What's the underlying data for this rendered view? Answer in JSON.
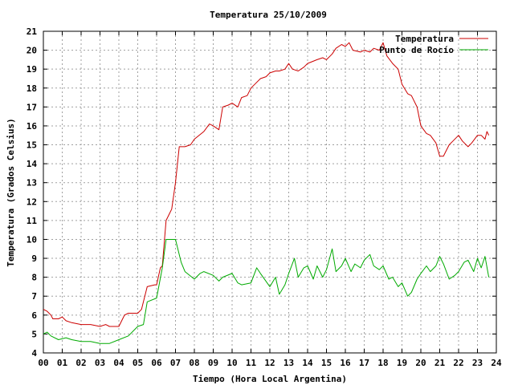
{
  "chart_data": {
    "type": "line",
    "title": "Temperatura 25/10/2009",
    "xlabel": "Tiempo (Hora Local Argentina)",
    "ylabel": "Temperatura (Grados Celsius)",
    "xlim": [
      0,
      24
    ],
    "ylim": [
      4,
      21
    ],
    "grid": true,
    "legend_position": "top-right",
    "x_ticks": [
      "00",
      "01",
      "02",
      "03",
      "04",
      "05",
      "06",
      "07",
      "08",
      "09",
      "10",
      "11",
      "12",
      "13",
      "14",
      "15",
      "16",
      "17",
      "18",
      "19",
      "20",
      "21",
      "22",
      "23",
      "24"
    ],
    "y_ticks": [
      "4",
      "5",
      "6",
      "7",
      "8",
      "9",
      "10",
      "11",
      "12",
      "13",
      "14",
      "15",
      "16",
      "17",
      "18",
      "19",
      "20",
      "21"
    ],
    "series": [
      {
        "name": "Temperatura",
        "color": "#cc0000",
        "x": [
          0,
          0.2,
          0.4,
          0.5,
          0.8,
          1.0,
          1.2,
          1.5,
          2.0,
          2.5,
          3.0,
          3.3,
          3.5,
          4.0,
          4.2,
          4.3,
          4.5,
          5.0,
          5.2,
          5.5,
          5.9,
          6.0,
          6.2,
          6.3,
          6.5,
          6.7,
          6.8,
          7.0,
          7.2,
          7.5,
          7.8,
          8.0,
          8.5,
          8.8,
          9.0,
          9.3,
          9.5,
          9.8,
          10.0,
          10.3,
          10.5,
          10.8,
          11.0,
          11.3,
          11.5,
          11.8,
          12.0,
          12.3,
          12.5,
          12.8,
          13.0,
          13.2,
          13.5,
          13.8,
          14.0,
          14.5,
          14.8,
          15.0,
          15.3,
          15.5,
          15.8,
          16.0,
          16.2,
          16.4,
          16.8,
          17.0,
          17.3,
          17.5,
          17.8,
          18.0,
          18.2,
          18.5,
          18.8,
          19.0,
          19.3,
          19.5,
          19.8,
          20.0,
          20.3,
          20.5,
          20.8,
          21.0,
          21.2,
          21.3,
          21.5,
          21.7,
          22.0,
          22.2,
          22.5,
          22.7,
          23.0,
          23.2,
          23.4,
          23.5,
          23.6
        ],
        "values": [
          6.3,
          6.2,
          6.0,
          5.8,
          5.8,
          5.9,
          5.7,
          5.6,
          5.5,
          5.5,
          5.4,
          5.5,
          5.4,
          5.4,
          5.8,
          6.0,
          6.1,
          6.1,
          6.3,
          7.5,
          7.6,
          7.6,
          8.5,
          8.6,
          11.0,
          11.4,
          11.6,
          13.0,
          14.9,
          14.9,
          15.0,
          15.3,
          15.7,
          16.1,
          16.0,
          15.8,
          17.0,
          17.1,
          17.2,
          17.0,
          17.5,
          17.6,
          18.0,
          18.3,
          18.5,
          18.6,
          18.8,
          18.9,
          18.9,
          19.0,
          19.3,
          19.0,
          18.9,
          19.1,
          19.3,
          19.5,
          19.6,
          19.5,
          19.8,
          20.1,
          20.3,
          20.2,
          20.4,
          20.0,
          19.9,
          20.0,
          19.9,
          20.1,
          20.0,
          20.4,
          19.7,
          19.3,
          19.0,
          18.2,
          17.7,
          17.6,
          17.0,
          16.0,
          15.6,
          15.5,
          15.1,
          14.4,
          14.4,
          14.6,
          15.0,
          15.2,
          15.5,
          15.2,
          14.9,
          15.1,
          15.5,
          15.5,
          15.3,
          15.7,
          15.5
        ]
      },
      {
        "name": "Punto de Rocío",
        "color": "#00aa00",
        "x": [
          0,
          0.2,
          0.4,
          0.8,
          1.2,
          1.5,
          2.0,
          2.5,
          3.0,
          3.5,
          4.0,
          4.5,
          5.0,
          5.3,
          5.5,
          6.0,
          6.3,
          6.5,
          6.8,
          7.0,
          7.3,
          7.5,
          8.0,
          8.3,
          8.5,
          9.0,
          9.3,
          9.5,
          10.0,
          10.3,
          10.5,
          11.0,
          11.3,
          11.5,
          12.0,
          12.3,
          12.5,
          12.8,
          13.0,
          13.3,
          13.5,
          13.8,
          14.0,
          14.3,
          14.5,
          14.8,
          15.0,
          15.3,
          15.5,
          15.8,
          16.0,
          16.3,
          16.5,
          16.8,
          17.0,
          17.3,
          17.5,
          17.8,
          18.0,
          18.3,
          18.5,
          18.8,
          19.0,
          19.3,
          19.5,
          19.8,
          20.0,
          20.3,
          20.5,
          20.8,
          21.0,
          21.2,
          21.5,
          21.8,
          22.0,
          22.3,
          22.5,
          22.8,
          23.0,
          23.2,
          23.4,
          23.6
        ],
        "values": [
          5.0,
          5.1,
          4.9,
          4.7,
          4.8,
          4.7,
          4.6,
          4.6,
          4.5,
          4.5,
          4.7,
          4.9,
          5.4,
          5.5,
          6.7,
          6.9,
          8.5,
          10.0,
          10.0,
          10.0,
          8.8,
          8.3,
          7.9,
          8.2,
          8.3,
          8.1,
          7.8,
          8.0,
          8.2,
          7.7,
          7.6,
          7.7,
          8.5,
          8.2,
          7.5,
          8.0,
          7.1,
          7.6,
          8.2,
          9.0,
          8.0,
          8.5,
          8.6,
          7.9,
          8.6,
          8.0,
          8.4,
          9.5,
          8.3,
          8.6,
          9.0,
          8.3,
          8.7,
          8.5,
          8.9,
          9.2,
          8.6,
          8.4,
          8.6,
          7.9,
          8.0,
          7.5,
          7.7,
          7.0,
          7.2,
          7.9,
          8.2,
          8.6,
          8.3,
          8.6,
          9.1,
          8.7,
          7.9,
          8.1,
          8.3,
          8.8,
          8.9,
          8.3,
          9.0,
          8.5,
          9.1,
          8.0
        ]
      }
    ]
  }
}
